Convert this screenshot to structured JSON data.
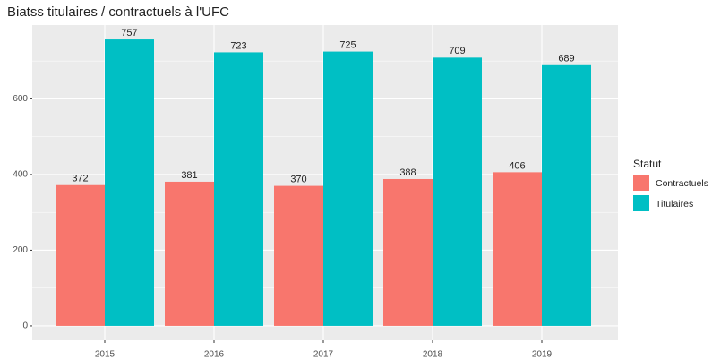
{
  "chart_data": {
    "type": "bar",
    "title": "Biatss titulaires / contractuels à l'UFC",
    "categories": [
      "2015",
      "2016",
      "2017",
      "2018",
      "2019"
    ],
    "series": [
      {
        "name": "Contractuels",
        "color": "#F8766D",
        "values": [
          372,
          381,
          370,
          388,
          406
        ]
      },
      {
        "name": "Titulaires",
        "color": "#00BFC4",
        "values": [
          757,
          723,
          725,
          709,
          689
        ]
      }
    ],
    "legend_title": "Statut",
    "legend_position": "right",
    "ylim": [
      -38,
      795
    ],
    "yticks": [
      0,
      200,
      400,
      600
    ],
    "grid": true
  }
}
